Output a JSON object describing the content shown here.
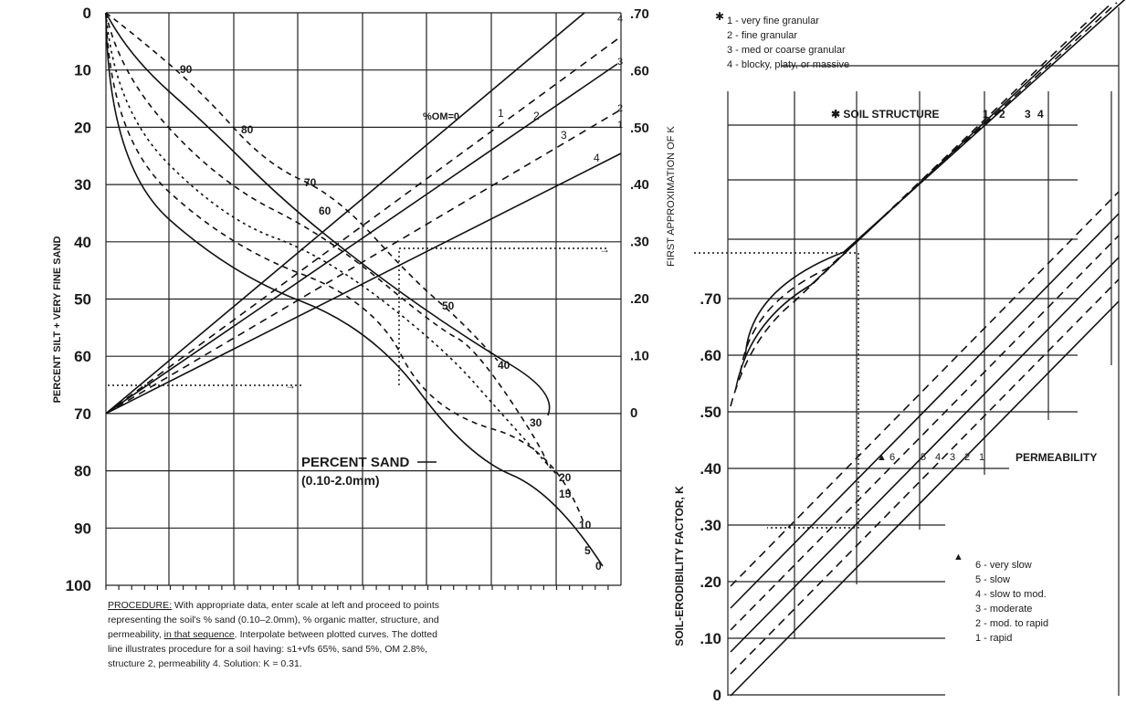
{
  "chart_data": {
    "type": "nomograph",
    "left_panel": {
      "y_axis_label": "PERCENT SILT + VERY FINE SAND",
      "y_ticks": [
        "0",
        "10",
        "20",
        "30",
        "40",
        "50",
        "60",
        "70",
        "80",
        "90",
        "100"
      ],
      "right_axis_label": "FIRST APPROXIMATION OF K",
      "right_ticks": [
        ".70",
        ".60",
        ".50",
        ".40",
        ".30",
        ".20",
        ".10",
        "0"
      ],
      "sand_label_line1": "PERCENT SAND",
      "sand_label_line2": "(0.10-2.0mm)",
      "sand_curves": [
        "90",
        "80",
        "70",
        "60",
        "50",
        "40",
        "30",
        "20",
        "15",
        "10",
        "5",
        "0"
      ],
      "om_label": "%OM=0",
      "om_lines": [
        "1",
        "2",
        "3",
        "4"
      ],
      "right_axis_line_numbers": [
        "4",
        "3",
        "2",
        "1"
      ]
    },
    "right_panel": {
      "y_axis_label": "SOIL-ERODIBILITY FACTOR, K",
      "y_ticks": [
        ".70",
        ".60",
        ".50",
        ".40",
        ".30",
        ".20",
        ".10",
        "0"
      ],
      "structure_title": "✱ SOIL STRUCTURE",
      "structure_lines": [
        "1",
        "2",
        "3",
        "4"
      ],
      "permeability_title": "PERMEABILITY",
      "permeability_lines": [
        "▲ 6",
        "5",
        "4",
        "3",
        "2",
        "1"
      ]
    },
    "structure_legend": [
      "1 - very fine granular",
      "2 - fine granular",
      "3 - med or coarse granular",
      "4 - blocky, platy, or massive"
    ],
    "structure_legend_marker": "✱",
    "permeability_legend": [
      "6 - very slow",
      "5 - slow",
      "4 - slow to mod.",
      "3 - moderate",
      "2 - mod. to rapid",
      "1 - rapid"
    ],
    "permeability_legend_marker": "▲",
    "example": {
      "silt_vfs": 65,
      "sand": 5,
      "om": 2.8,
      "structure": 2,
      "permeability": 4,
      "k": 0.31
    }
  },
  "procedure": {
    "heading": "PROCEDURE:",
    "line1": " With appropriate data, enter scale at left and proceed to points",
    "line2": "representing the soil's % sand (0.10–2.0mm), % organic matter, structure, and",
    "line3a": "permeability, ",
    "line3b": "in that sequence",
    "line3c": ". Interpolate between plotted curves. The dotted",
    "line4": "line illustrates procedure for a soil having: s1+vfs 65%, sand 5%, OM 2.8%,",
    "line5": "structure 2, permeability 4. Solution: K = 0.31."
  }
}
